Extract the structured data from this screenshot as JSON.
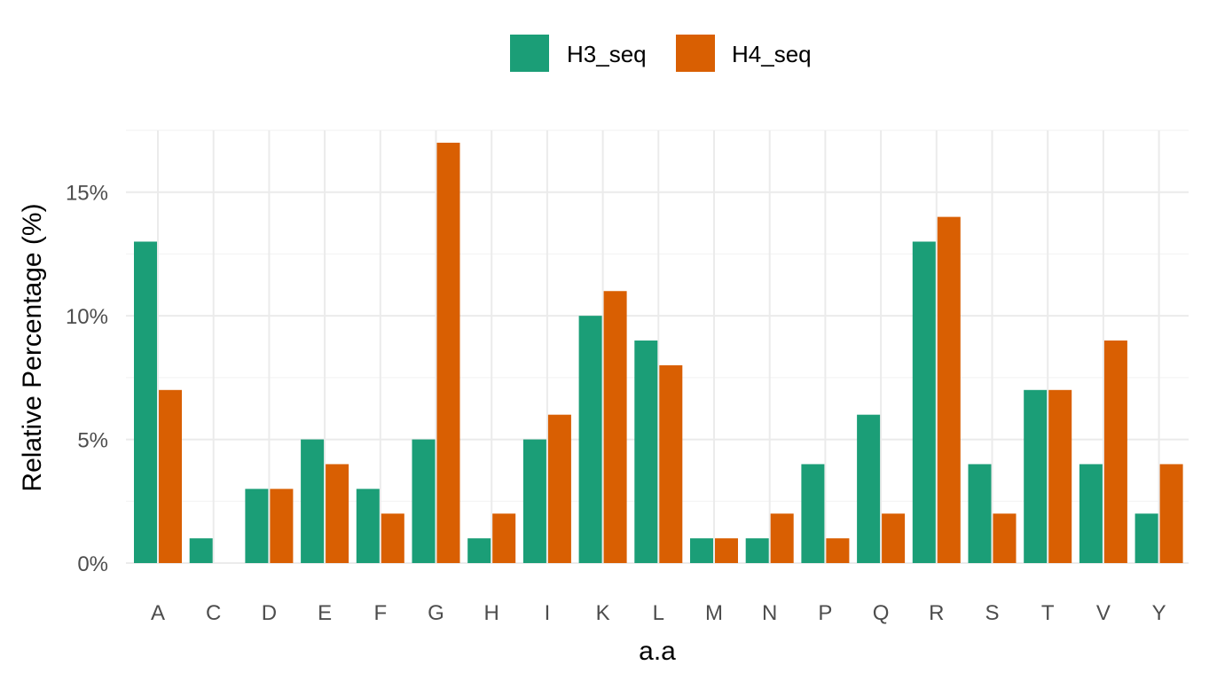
{
  "chart_data": {
    "type": "bar",
    "title": "",
    "xlabel": "a.a",
    "ylabel": "Relative Percentage (%)",
    "categories": [
      "A",
      "C",
      "D",
      "E",
      "F",
      "G",
      "H",
      "I",
      "K",
      "L",
      "M",
      "N",
      "P",
      "Q",
      "R",
      "S",
      "T",
      "V",
      "Y"
    ],
    "series": [
      {
        "name": "H3_seq",
        "color": "#1b9e77",
        "values": [
          13,
          1,
          3,
          5,
          3,
          5,
          1,
          5,
          10,
          9,
          1,
          1,
          4,
          6,
          13,
          4,
          7,
          4,
          2
        ]
      },
      {
        "name": "H4_seq",
        "color": "#d95f02",
        "values": [
          7,
          0,
          3,
          4,
          2,
          17,
          2,
          6,
          11,
          8,
          1,
          2,
          1,
          2,
          14,
          2,
          7,
          9,
          4
        ]
      }
    ],
    "ylim": [
      0,
      17.5
    ],
    "yticks": [
      0,
      5,
      10,
      15
    ],
    "ytick_labels": [
      "0%",
      "5%",
      "10%",
      "15%"
    ],
    "grid": true,
    "legend_position": "top"
  }
}
